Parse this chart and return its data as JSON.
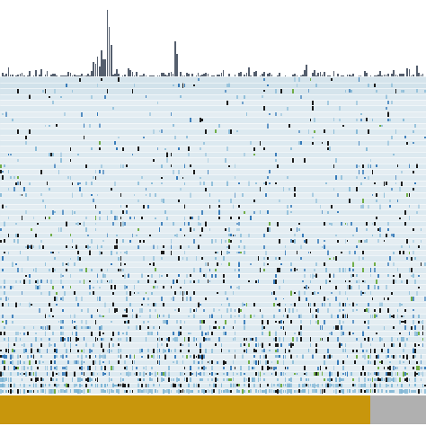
{
  "fig_width": 4.74,
  "fig_height": 4.74,
  "dpi": 100,
  "n_samples": 220,
  "n_genes": 55,
  "bar_color": "#555f6e",
  "blue_light": "#7ab3d4",
  "blue_dark": "#2e75b6",
  "black_color": "#1a1a1a",
  "green_color": "#70ad47",
  "gold_color": "#c8960c",
  "gray_color": "#b0b0b0",
  "white_color": "#ffffff",
  "bg_light": "#e4edf2",
  "bg_stripe": "#ccdde8",
  "top_stripe_bg": "#c8dce8",
  "seed": 7
}
